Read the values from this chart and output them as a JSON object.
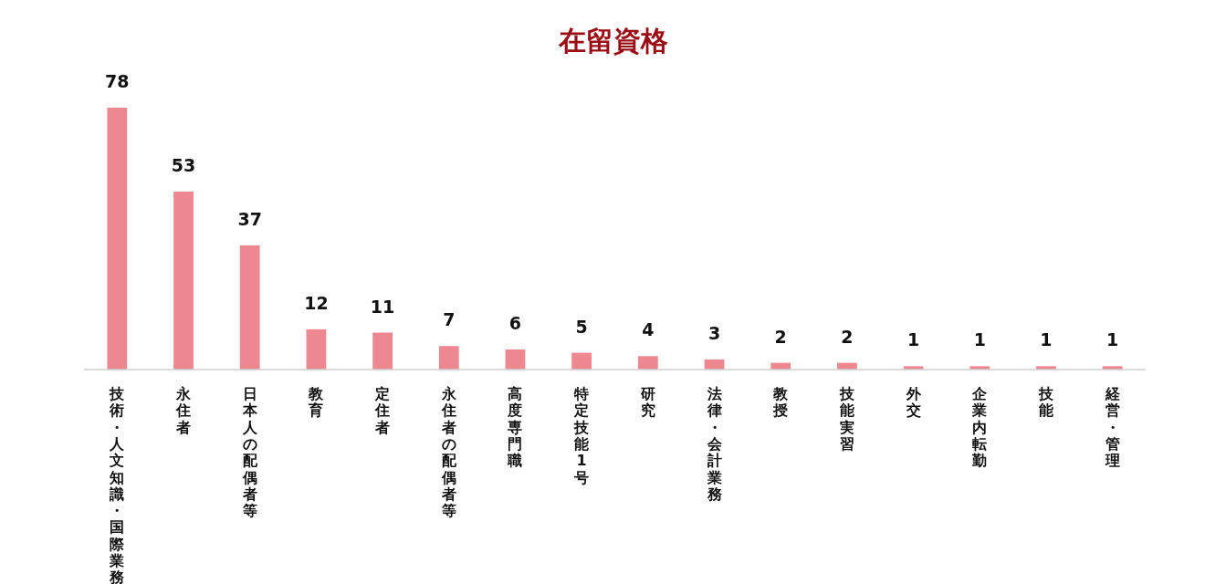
{
  "chart_data": {
    "type": "bar",
    "title": "在留資格",
    "categories": [
      "技術・人文知識・国際業務",
      "永住者",
      "日本人の配偶者等",
      "教育",
      "定住者",
      "永住者の配偶者等",
      "高度専門職",
      "特定技能1号",
      "研究",
      "法律・会計業務",
      "教授",
      "技能実習",
      "外交",
      "企業内転勤",
      "技能",
      "経営・管理"
    ],
    "values": [
      78,
      53,
      37,
      12,
      11,
      7,
      6,
      5,
      4,
      3,
      2,
      2,
      1,
      1,
      1,
      1
    ],
    "color": "#ee8890",
    "data_labels": true
  }
}
